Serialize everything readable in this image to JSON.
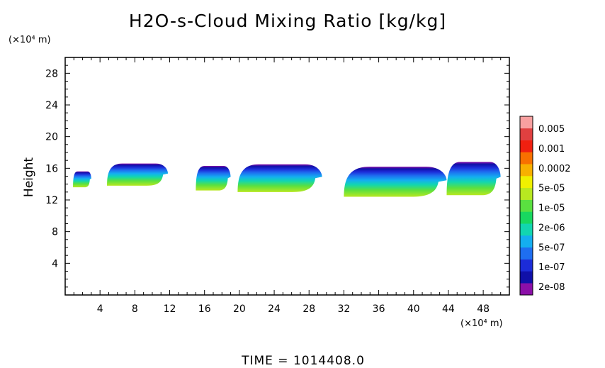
{
  "chart_data": {
    "type": "heatmap",
    "title": "H2O-s-Cloud Mixing Ratio [kg/kg]",
    "ylabel": "Height",
    "y_unit": "(×10⁴ m)",
    "x_unit": "(×10⁴ m)",
    "xlim": [
      0,
      51
    ],
    "ylim": [
      0,
      30
    ],
    "x_ticks": [
      "4",
      "8",
      "12",
      "16",
      "20",
      "24",
      "28",
      "32",
      "36",
      "40",
      "44",
      "48"
    ],
    "y_ticks": [
      "4",
      "8",
      "12",
      "16",
      "20",
      "24",
      "28"
    ],
    "colorbar": {
      "labels": [
        "0.005",
        "0.001",
        "0.0002",
        "5e-05",
        "1e-05",
        "2e-06",
        "5e-07",
        "1e-07",
        "2e-08"
      ],
      "colors": [
        "#8b0fa8",
        "#1010a8",
        "#1c2cd8",
        "#1e6ef0",
        "#14aef0",
        "#12d6b0",
        "#18d860",
        "#5ae040",
        "#b8e820",
        "#f0f000",
        "#f8b000",
        "#f87000",
        "#f02010",
        "#e04040",
        "#f8a0a0"
      ]
    },
    "cloud_layers": [
      {
        "x_range": [
          0.9,
          3.0
        ],
        "base": 13.6,
        "top": 15.6
      },
      {
        "x_range": [
          4.8,
          11.8
        ],
        "base": 13.8,
        "top": 16.6
      },
      {
        "x_range": [
          15.0,
          19.0
        ],
        "base": 13.2,
        "top": 16.3
      },
      {
        "x_range": [
          19.8,
          29.5
        ],
        "base": 13.0,
        "top": 16.5
      },
      {
        "x_range": [
          32.0,
          43.8
        ],
        "base": 12.4,
        "top": 16.2
      },
      {
        "x_range": [
          43.8,
          50.0
        ],
        "base": 12.6,
        "top": 16.8
      }
    ],
    "grid": false
  },
  "footer": {
    "time_label": "TIME = 1014408.0"
  }
}
